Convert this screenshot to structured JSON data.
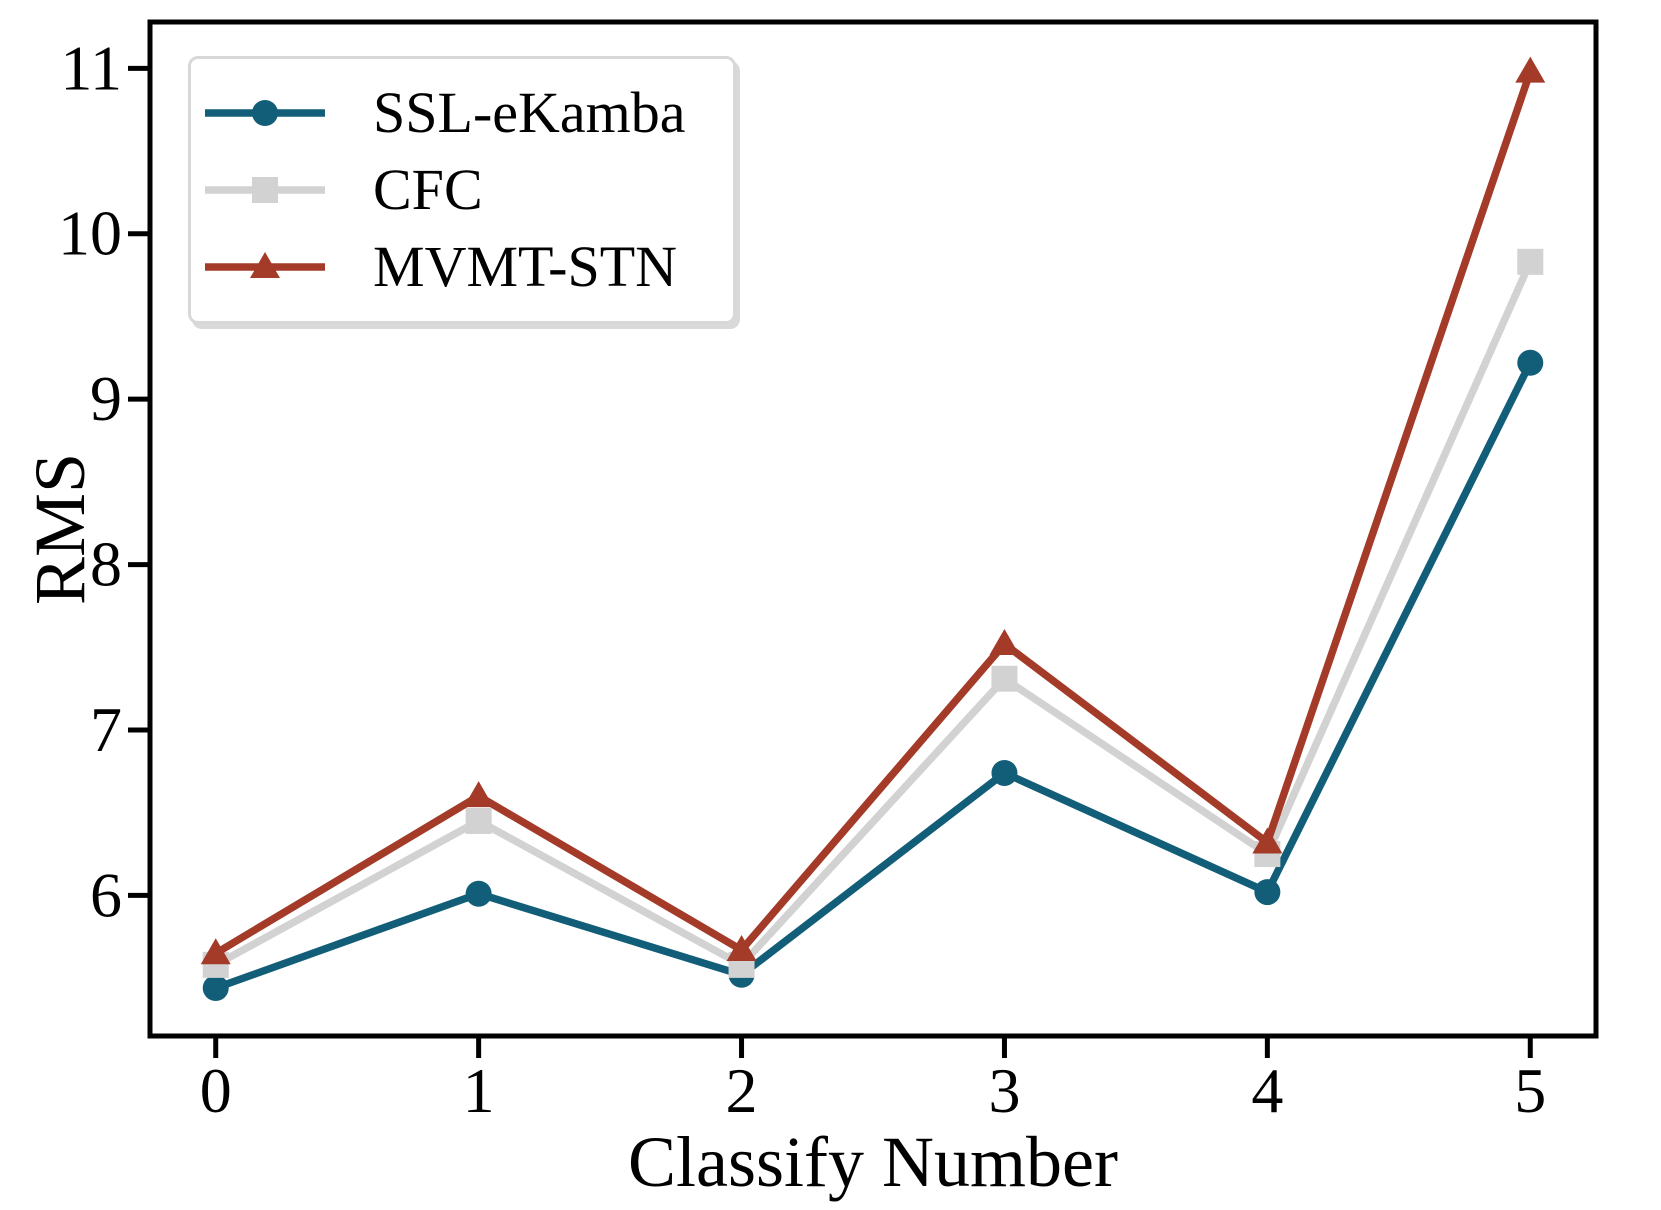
{
  "figure": {
    "background": "#ffffff",
    "spine_color": "#000000",
    "text_color": "#000000",
    "legend_border_color": "#d8d8d8",
    "legend_shadow_color": "#d9d9d9"
  },
  "chart_data": {
    "type": "line",
    "title": "",
    "xlabel": "Classify Number",
    "ylabel": "RMS",
    "x": [
      0,
      1,
      2,
      3,
      4,
      5
    ],
    "x_ticks": [
      "0",
      "1",
      "2",
      "3",
      "4",
      "5"
    ],
    "y_ticks": [
      "6",
      "7",
      "8",
      "9",
      "10",
      "11"
    ],
    "xlim": [
      -0.25,
      5.25
    ],
    "ylim": [
      5.15,
      11.28
    ],
    "grid": false,
    "legend_position": "upper-left",
    "series": [
      {
        "name": "SSL-eKamba",
        "marker": "circle",
        "color": "#125e78",
        "values": [
          5.44,
          6.01,
          5.52,
          6.74,
          6.02,
          9.22
        ]
      },
      {
        "name": "CFC",
        "marker": "square",
        "color": "#d2d2d2",
        "values": [
          5.58,
          6.45,
          5.58,
          7.31,
          6.25,
          9.83
        ]
      },
      {
        "name": "MVMT-STN",
        "marker": "triangle",
        "color": "#a33b28",
        "values": [
          5.65,
          6.6,
          5.67,
          7.52,
          6.32,
          10.98
        ]
      }
    ]
  }
}
